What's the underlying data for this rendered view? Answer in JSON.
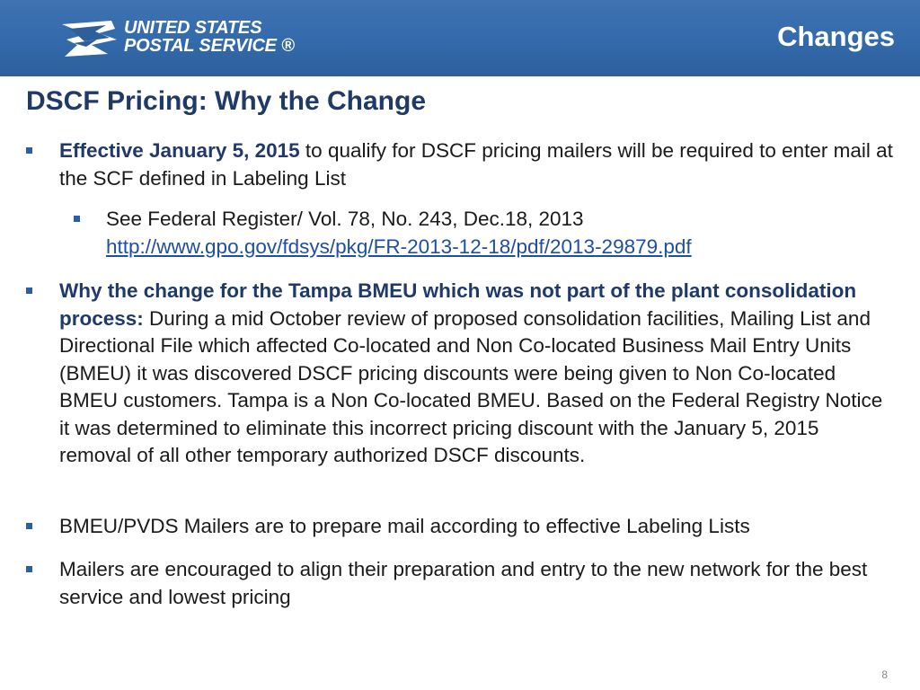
{
  "header": {
    "logo": {
      "line1": "UNITED STATES",
      "line2": "POSTAL SERVICE ®",
      "icon": "usps-eagle-icon"
    },
    "section_title": "Changes"
  },
  "slide_title": "DSCF Pricing: Why the Change",
  "bullets": [
    {
      "bold": "Effective January 5, 2015",
      "text": " to qualify for DSCF pricing mailers will be required to enter mail at the SCF defined in Labeling List"
    },
    {
      "text": "See Federal Register/ Vol. 78, No. 243, Dec.18, 2013",
      "link": "http://www.gpo.gov/fdsys/pkg/FR-2013-12-18/pdf/2013-29879.pdf"
    },
    {
      "bold": "Why the change for the Tampa BMEU which was not part of the plant consolidation process:",
      "text": " During a mid October review of proposed consolidation facilities, Mailing List and Directional File which affected Co-located and Non Co-located Business Mail Entry Units (BMEU) it was discovered DSCF pricing discounts were being given to Non Co-located BMEU customers. Tampa is a Non Co-located BMEU. Based on the Federal Registry Notice it was determined to eliminate this incorrect pricing discount with the January 5, 2015 removal of all other temporary authorized DSCF discounts."
    },
    {
      "text": "BMEU/PVDS Mailers are to prepare mail according to effective Labeling Lists"
    },
    {
      "text": "Mailers are encouraged to align their preparation and entry to the new network for the best service and lowest pricing"
    }
  ],
  "page_number": "8",
  "colors": {
    "header_blue": "#336aab",
    "title_navy": "#1f3a68",
    "bullet_blue": "#2b5ea8"
  }
}
